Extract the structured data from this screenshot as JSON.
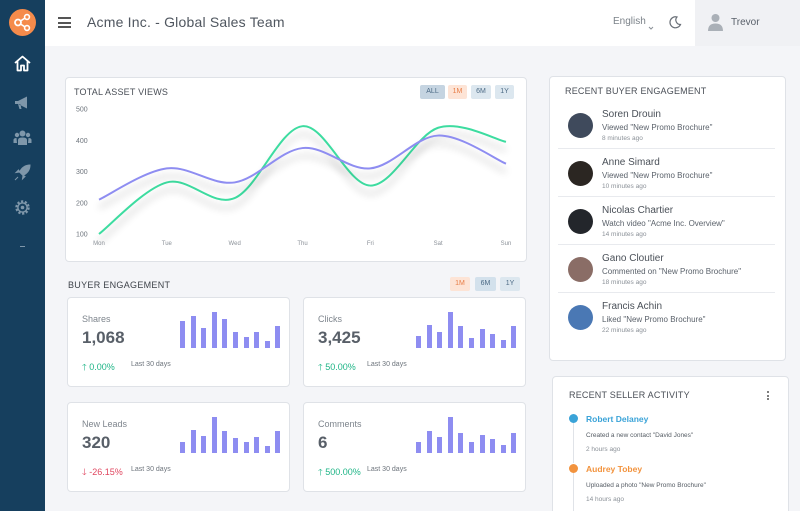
{
  "header": {
    "title": "Acme Inc. - Global Sales Team",
    "language": "English",
    "user_name": "Trevor"
  },
  "sidebar": {
    "items": [
      {
        "icon": "home-icon"
      },
      {
        "icon": "megaphone-icon"
      },
      {
        "icon": "team-icon"
      },
      {
        "icon": "rocket-icon"
      },
      {
        "icon": "gear-icon"
      }
    ]
  },
  "colors": {
    "sidebar": "#163f5e",
    "accent_orange": "#f58b4b",
    "series_green": "#3ddca0",
    "series_purple": "#8e8df1",
    "positive": "#1fb587",
    "negative": "#e04760"
  },
  "asset_views": {
    "title": "TOTAL ASSET VIEWS",
    "filters": [
      "ALL",
      "1M",
      "6M",
      "1Y"
    ],
    "active_filter": "ALL"
  },
  "chart_data": {
    "type": "line",
    "title": "TOTAL ASSET VIEWS",
    "categories": [
      "Mon",
      "Tue",
      "Wed",
      "Thu",
      "Fri",
      "Sat",
      "Sun"
    ],
    "y_ticks": [
      100,
      200,
      300,
      400,
      500
    ],
    "ylim": [
      100,
      500
    ],
    "grid": false,
    "series": [
      {
        "color": "#3ddca0",
        "values": [
          100,
          265,
          215,
          445,
          255,
          440,
          395
        ]
      },
      {
        "color": "#8e8df1",
        "values": [
          210,
          310,
          265,
          375,
          310,
          415,
          325
        ]
      }
    ]
  },
  "buyer_engagement": {
    "title": "BUYER ENGAGEMENT",
    "filters": [
      "1M",
      "6M",
      "1Y"
    ],
    "metrics": [
      {
        "label": "Shares",
        "value": "1,068",
        "change": "0.00%",
        "direction": "up",
        "period": "Last 30 days",
        "bars": [
          0.75,
          0.9,
          0.55,
          1.0,
          0.8,
          0.45,
          0.3,
          0.45,
          0.2,
          0.62
        ]
      },
      {
        "label": "Clicks",
        "value": "3,425",
        "change": "50.00%",
        "direction": "up",
        "period": "Last 30 days",
        "bars": [
          0.32,
          0.65,
          0.45,
          1.0,
          0.62,
          0.28,
          0.52,
          0.38,
          0.22,
          0.6
        ]
      },
      {
        "label": "New Leads",
        "value": "320",
        "change": "-26.15%",
        "direction": "down",
        "period": "Last 30 days",
        "bars": [
          0.3,
          0.65,
          0.48,
          1.0,
          0.6,
          0.42,
          0.3,
          0.45,
          0.2,
          0.6
        ]
      },
      {
        "label": "Comments",
        "value": "6",
        "change": "500.00%",
        "direction": "up",
        "period": "Last 30 days",
        "bars": [
          0.3,
          0.6,
          0.45,
          1.0,
          0.55,
          0.3,
          0.5,
          0.38,
          0.22,
          0.55
        ]
      }
    ]
  },
  "recent_buyer_engagement": {
    "title": "RECENT BUYER ENGAGEMENT",
    "items": [
      {
        "name": "Soren Drouin",
        "action": "Viewed \"New Promo Brochure\"",
        "time": "8 minutes ago",
        "avatar_color": "#3f4a5c"
      },
      {
        "name": "Anne Simard",
        "action": "Viewed \"New Promo Brochure\"",
        "time": "10 minutes ago",
        "avatar_color": "#2b2622"
      },
      {
        "name": "Nicolas Chartier",
        "action": "Watch video \"Acme Inc. Overview\"",
        "time": "14 minutes ago",
        "avatar_color": "#23262b"
      },
      {
        "name": "Gano Cloutier",
        "action": "Commented on \"New Promo Brochure\"",
        "time": "18 minutes ago",
        "avatar_color": "#8a6d66"
      },
      {
        "name": "Francis Achin",
        "action": "Liked \"New Promo Brochure\"",
        "time": "22 minutes ago",
        "avatar_color": "#4a78b4"
      }
    ]
  },
  "recent_seller_activity": {
    "title": "RECENT SELLER ACTIVITY",
    "items": [
      {
        "name": "Robert Delaney",
        "description": "Created a new contact \"David Jones\"",
        "time": "2 hours ago",
        "color": "#3aa3d8"
      },
      {
        "name": "Audrey Tobey",
        "description": "Uploaded a photo \"New Promo Brochure\"",
        "time": "14 hours ago",
        "color": "#f2933e"
      }
    ]
  }
}
